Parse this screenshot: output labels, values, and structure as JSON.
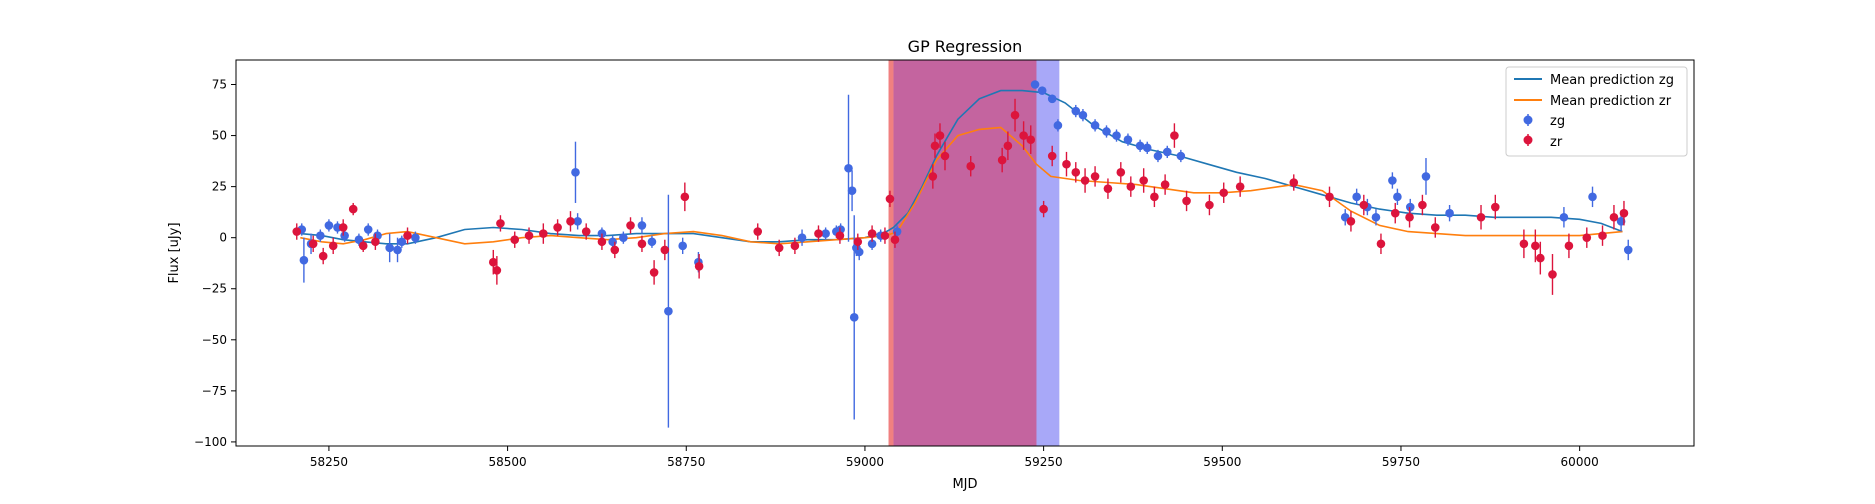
{
  "chart_data": {
    "type": "scatter",
    "title": "GP Regression",
    "xlabel": "MJD",
    "ylabel": "Flux [uJy]",
    "xlim": [
      58120,
      60160
    ],
    "ylim": [
      -102,
      87
    ],
    "x_ticks": [
      58250,
      58500,
      58750,
      59000,
      59250,
      59500,
      59750,
      60000
    ],
    "y_ticks": [
      75,
      50,
      25,
      0,
      -25,
      -50,
      -75,
      -100
    ],
    "x_tick_labels": [
      "58250",
      "58500",
      "58750",
      "59000",
      "59250",
      "59500",
      "59750",
      "60000"
    ],
    "y_tick_labels": [
      "75",
      "50",
      "25",
      "0",
      "−25",
      "−50",
      "−75",
      "−100"
    ],
    "grid": false,
    "legend_position": "upper right",
    "colors": {
      "zg_points": "#4169e1",
      "zr_points": "#dc143c",
      "zg_line": "#1f77b4",
      "zr_line": "#ff7f0e",
      "span_red": "#f08080",
      "span_overlap": "#c4649f",
      "span_blue": "#a8a8f8"
    },
    "shaded_regions": [
      {
        "band": "zr",
        "x0": 59033,
        "x1": 59240
      },
      {
        "band": "zg",
        "x0": 59040,
        "x1": 59272
      }
    ],
    "legend": [
      {
        "label": "Mean prediction zg",
        "kind": "line",
        "color": "#1f77b4"
      },
      {
        "label": "Mean prediction zr",
        "kind": "line",
        "color": "#ff7f0e"
      },
      {
        "label": "zg",
        "kind": "errorbar",
        "color": "#4169e1"
      },
      {
        "label": "zr",
        "kind": "errorbar",
        "color": "#dc143c"
      }
    ],
    "series": [
      {
        "name": "Mean prediction zg",
        "kind": "line",
        "x": [
          58210,
          58240,
          58270,
          58300,
          58330,
          58360,
          58400,
          58440,
          58480,
          58520,
          58560,
          58600,
          58640,
          58680,
          58720,
          58760,
          58800,
          58840,
          58880,
          58920,
          58960,
          59000,
          59030,
          59040,
          59060,
          59080,
          59100,
          59130,
          59160,
          59190,
          59220,
          59250,
          59280,
          59320,
          59360,
          59400,
          59440,
          59480,
          59520,
          59560,
          59600,
          59640,
          59680,
          59720,
          59760,
          59800,
          59840,
          59880,
          59920,
          59960,
          60000,
          60030,
          60060
        ],
        "y": [
          2,
          1,
          -1,
          -2,
          -3,
          -3,
          0,
          4,
          5,
          4,
          2,
          1,
          1,
          2,
          2,
          2,
          0,
          -2,
          -2,
          -1,
          -1,
          0,
          3,
          5,
          12,
          25,
          40,
          58,
          68,
          72,
          72,
          71,
          66,
          55,
          47,
          43,
          40,
          36,
          32,
          29,
          25,
          21,
          17,
          14,
          12,
          11,
          11,
          10,
          10,
          10,
          9,
          7,
          3
        ]
      },
      {
        "name": "Mean prediction zr",
        "kind": "line",
        "x": [
          58210,
          58240,
          58270,
          58300,
          58330,
          58360,
          58400,
          58440,
          58480,
          58520,
          58560,
          58600,
          58640,
          58680,
          58720,
          58760,
          58800,
          58840,
          58880,
          58920,
          58960,
          59000,
          59030,
          59045,
          59070,
          59100,
          59130,
          59160,
          59190,
          59220,
          59240,
          59260,
          59300,
          59340,
          59380,
          59420,
          59460,
          59500,
          59540,
          59580,
          59600,
          59640,
          59680,
          59720,
          59760,
          59800,
          59840,
          59880,
          59920,
          59960,
          60000,
          60030,
          60060
        ],
        "y": [
          0,
          -2,
          -3,
          -1,
          2,
          3,
          0,
          -3,
          -2,
          0,
          1,
          0,
          -1,
          0,
          2,
          3,
          1,
          -2,
          -3,
          -2,
          -1,
          0,
          1,
          3,
          17,
          38,
          50,
          53,
          54,
          45,
          36,
          30,
          28,
          27,
          26,
          24,
          22,
          22,
          23,
          25,
          26,
          23,
          13,
          6,
          3,
          2,
          1,
          1,
          1,
          1,
          1,
          2,
          3
        ]
      },
      {
        "name": "zg",
        "kind": "errorbar",
        "x": [
          58212,
          58215,
          58225,
          58238,
          58250,
          58262,
          58272,
          58292,
          58305,
          58318,
          58335,
          58346,
          58352,
          58371,
          58595,
          58598,
          58632,
          58647,
          58662,
          58688,
          58702,
          58725,
          58745,
          58767,
          58912,
          58945,
          58960,
          58966,
          58977,
          58982,
          58985,
          58988,
          58992,
          59010,
          59022,
          59045,
          59238,
          59248,
          59262,
          59270,
          59295,
          59305,
          59322,
          59338,
          59352,
          59368,
          59385,
          59395,
          59410,
          59423,
          59442,
          59672,
          59688,
          59703,
          59715,
          59738,
          59745,
          59763,
          59785,
          59818,
          59978,
          60018,
          60058,
          60068
        ],
        "y": [
          4,
          -11,
          -3,
          1,
          6,
          5,
          1,
          -1,
          4,
          1,
          -5,
          -6,
          -2,
          0,
          32,
          8,
          2,
          -2,
          0,
          6,
          -2,
          -36,
          -4,
          -12,
          0,
          2,
          3,
          4,
          34,
          23,
          -39,
          -5,
          -7,
          -3,
          1,
          3,
          75,
          72,
          68,
          55,
          62,
          60,
          55,
          52,
          50,
          48,
          45,
          44,
          40,
          42,
          40,
          10,
          20,
          15,
          10,
          28,
          20,
          15,
          30,
          12,
          10,
          20,
          8,
          -6
        ],
        "err": [
          3,
          11,
          5,
          3,
          3,
          3,
          3,
          3,
          3,
          3,
          7,
          6,
          3,
          3,
          15,
          4,
          3,
          3,
          3,
          4,
          3,
          57,
          4,
          5,
          4,
          3,
          3,
          3,
          36,
          10,
          50,
          4,
          4,
          3,
          3,
          3,
          2,
          2,
          2,
          3,
          3,
          3,
          3,
          3,
          3,
          3,
          3,
          3,
          3,
          3,
          3,
          4,
          4,
          4,
          4,
          4,
          4,
          4,
          9,
          4,
          5,
          5,
          5,
          5
        ]
      },
      {
        "name": "zr",
        "kind": "errorbar",
        "x": [
          58205,
          58228,
          58242,
          58256,
          58270,
          58284,
          58298,
          58315,
          58360,
          58480,
          58485,
          58490,
          58510,
          58530,
          58550,
          58570,
          58588,
          58610,
          58632,
          58650,
          58672,
          58688,
          58705,
          58720,
          58748,
          58768,
          58850,
          58880,
          58902,
          58935,
          58965,
          58990,
          59010,
          59028,
          59035,
          59042,
          59095,
          59098,
          59105,
          59112,
          59148,
          59192,
          59200,
          59210,
          59222,
          59232,
          59250,
          59262,
          59282,
          59295,
          59308,
          59322,
          59340,
          59358,
          59372,
          59390,
          59405,
          59420,
          59433,
          59450,
          59482,
          59502,
          59525,
          59600,
          59650,
          59680,
          59698,
          59722,
          59742,
          59762,
          59780,
          59798,
          59862,
          59882,
          59922,
          59938,
          59945,
          59962,
          59985,
          60010,
          60032,
          60048,
          60062
        ],
        "y": [
          3,
          -3,
          -9,
          -4,
          5,
          14,
          -4,
          -2,
          1,
          -12,
          -16,
          7,
          -1,
          1,
          2,
          5,
          8,
          3,
          -2,
          -6,
          6,
          -3,
          -17,
          -6,
          20,
          -14,
          3,
          -5,
          -4,
          2,
          1,
          -2,
          2,
          1,
          19,
          -1,
          30,
          45,
          50,
          40,
          35,
          38,
          45,
          60,
          50,
          48,
          14,
          40,
          36,
          32,
          28,
          30,
          24,
          32,
          25,
          28,
          20,
          26,
          50,
          18,
          16,
          22,
          25,
          27,
          20,
          8,
          16,
          -3,
          12,
          10,
          16,
          5,
          10,
          15,
          -3,
          -4,
          -10,
          -18,
          -4,
          0,
          1,
          10,
          12
        ],
        "err": [
          4,
          4,
          4,
          4,
          4,
          3,
          3,
          4,
          4,
          6,
          7,
          4,
          4,
          4,
          5,
          4,
          5,
          4,
          4,
          4,
          4,
          4,
          6,
          5,
          7,
          6,
          4,
          4,
          4,
          4,
          4,
          4,
          4,
          4,
          4,
          4,
          6,
          6,
          6,
          7,
          5,
          6,
          7,
          8,
          7,
          7,
          4,
          5,
          6,
          5,
          6,
          5,
          5,
          5,
          5,
          6,
          5,
          5,
          6,
          5,
          5,
          5,
          5,
          4,
          5,
          5,
          5,
          5,
          5,
          5,
          5,
          5,
          6,
          6,
          7,
          8,
          8,
          10,
          6,
          5,
          5,
          6,
          6
        ]
      }
    ]
  }
}
